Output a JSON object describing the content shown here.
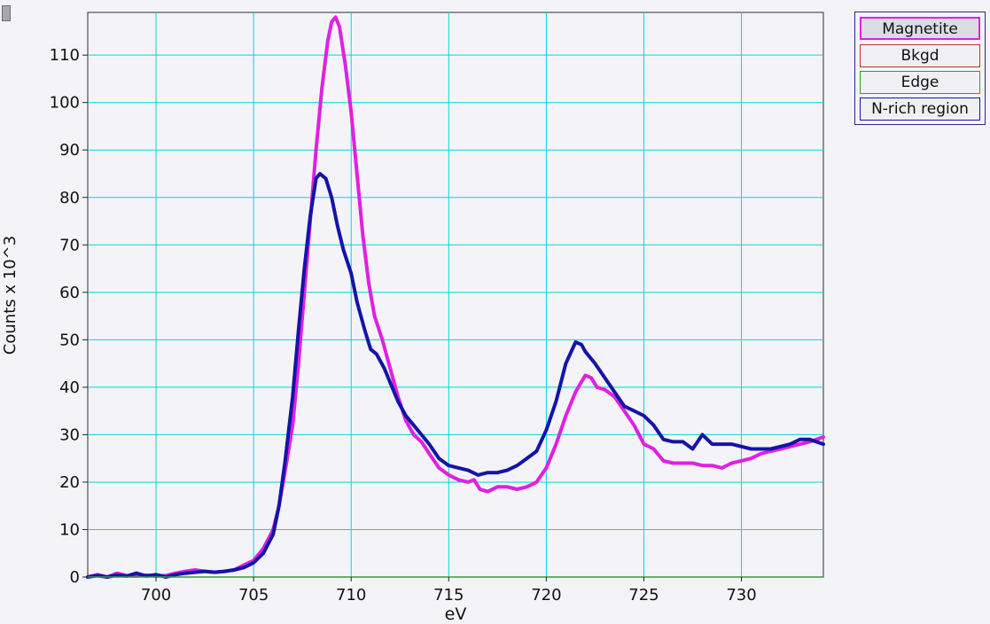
{
  "legend": {
    "items": [
      {
        "label": "Magnetite",
        "color": "#e020e0",
        "selected": true
      },
      {
        "label": "Bkgd",
        "color": "#c03030",
        "selected": false
      },
      {
        "label": "Edge",
        "color": "#30a030",
        "selected": false
      },
      {
        "label": "N-rich region",
        "color": "#1414a8",
        "selected": false
      }
    ]
  },
  "chart_data": {
    "type": "line",
    "xlabel": "eV",
    "ylabel": "Counts x 10^3",
    "xlim": [
      696.5,
      734.2
    ],
    "ylim": [
      0,
      119
    ],
    "xticks": [
      700,
      705,
      710,
      715,
      720,
      725,
      730
    ],
    "yticks": [
      0,
      10,
      20,
      30,
      40,
      50,
      60,
      70,
      80,
      90,
      100,
      110
    ],
    "grid": true,
    "grid_color": "#00d8d8",
    "legend_position": "top-right outside",
    "series": [
      {
        "name": "Magnetite",
        "color": "#e020e0",
        "points": [
          [
            696.5,
            0
          ],
          [
            697,
            0.5
          ],
          [
            697.5,
            0
          ],
          [
            698,
            0.8
          ],
          [
            698.5,
            0.3
          ],
          [
            699,
            0.2
          ],
          [
            699.5,
            0.4
          ],
          [
            700,
            0.2
          ],
          [
            700.5,
            0.3
          ],
          [
            701,
            0.8
          ],
          [
            701.5,
            1.2
          ],
          [
            702,
            1.5
          ],
          [
            702.5,
            1.2
          ],
          [
            703,
            1
          ],
          [
            703.5,
            1.2
          ],
          [
            704,
            1.5
          ],
          [
            704.5,
            2.5
          ],
          [
            705,
            3.5
          ],
          [
            705.5,
            6
          ],
          [
            706,
            10
          ],
          [
            706.3,
            15
          ],
          [
            706.6,
            22
          ],
          [
            707,
            32
          ],
          [
            707.3,
            45
          ],
          [
            707.6,
            60
          ],
          [
            707.9,
            75
          ],
          [
            708.2,
            90
          ],
          [
            708.5,
            103
          ],
          [
            708.8,
            113
          ],
          [
            709,
            117
          ],
          [
            709.2,
            118
          ],
          [
            709.4,
            116
          ],
          [
            709.7,
            108
          ],
          [
            710,
            98
          ],
          [
            710.3,
            85
          ],
          [
            710.6,
            72
          ],
          [
            710.9,
            62
          ],
          [
            711.2,
            55
          ],
          [
            711.6,
            50
          ],
          [
            712,
            44
          ],
          [
            712.4,
            38
          ],
          [
            712.8,
            33
          ],
          [
            713.2,
            30
          ],
          [
            713.6,
            28.5
          ],
          [
            714,
            26
          ],
          [
            714.5,
            23
          ],
          [
            715,
            21.5
          ],
          [
            715.5,
            20.5
          ],
          [
            716,
            20
          ],
          [
            716.3,
            20.5
          ],
          [
            716.6,
            18.5
          ],
          [
            717,
            18
          ],
          [
            717.5,
            19
          ],
          [
            718,
            19
          ],
          [
            718.5,
            18.5
          ],
          [
            719,
            19
          ],
          [
            719.5,
            20
          ],
          [
            720,
            23
          ],
          [
            720.5,
            28
          ],
          [
            721,
            34
          ],
          [
            721.5,
            39
          ],
          [
            722,
            42.5
          ],
          [
            722.3,
            42
          ],
          [
            722.6,
            40
          ],
          [
            723,
            39.5
          ],
          [
            723.5,
            38
          ],
          [
            724,
            35
          ],
          [
            724.5,
            32
          ],
          [
            725,
            28
          ],
          [
            725.5,
            27
          ],
          [
            726,
            24.5
          ],
          [
            726.5,
            24
          ],
          [
            727,
            24
          ],
          [
            727.5,
            24
          ],
          [
            728,
            23.5
          ],
          [
            728.5,
            23.5
          ],
          [
            729,
            23
          ],
          [
            729.5,
            24
          ],
          [
            730,
            24.5
          ],
          [
            730.5,
            25
          ],
          [
            731,
            26
          ],
          [
            731.5,
            26.5
          ],
          [
            732,
            27
          ],
          [
            732.5,
            27.5
          ],
          [
            733,
            28
          ],
          [
            733.5,
            28.5
          ],
          [
            734.2,
            29.5
          ]
        ]
      },
      {
        "name": "N-rich region",
        "color": "#1414a8",
        "points": [
          [
            696.5,
            0
          ],
          [
            697,
            0.3
          ],
          [
            697.5,
            0
          ],
          [
            698,
            0.4
          ],
          [
            698.5,
            0.2
          ],
          [
            699,
            0.8
          ],
          [
            699.5,
            0.2
          ],
          [
            700,
            0.5
          ],
          [
            700.5,
            0
          ],
          [
            701,
            0.5
          ],
          [
            701.5,
            0.8
          ],
          [
            702,
            1
          ],
          [
            702.5,
            1.2
          ],
          [
            703,
            1
          ],
          [
            703.5,
            1.2
          ],
          [
            704,
            1.5
          ],
          [
            704.5,
            2
          ],
          [
            705,
            3
          ],
          [
            705.5,
            5
          ],
          [
            706,
            9
          ],
          [
            706.3,
            15
          ],
          [
            706.6,
            24
          ],
          [
            707,
            38
          ],
          [
            707.3,
            52
          ],
          [
            707.6,
            65
          ],
          [
            707.9,
            76
          ],
          [
            708.2,
            84
          ],
          [
            708.4,
            85
          ],
          [
            708.7,
            84
          ],
          [
            709,
            80
          ],
          [
            709.3,
            74
          ],
          [
            709.6,
            69
          ],
          [
            710,
            64
          ],
          [
            710.3,
            58
          ],
          [
            710.7,
            52
          ],
          [
            711,
            48
          ],
          [
            711.3,
            47
          ],
          [
            711.7,
            44
          ],
          [
            712,
            41
          ],
          [
            712.4,
            37
          ],
          [
            712.8,
            34
          ],
          [
            713.2,
            32
          ],
          [
            713.6,
            30
          ],
          [
            714,
            28
          ],
          [
            714.5,
            25
          ],
          [
            715,
            23.5
          ],
          [
            715.5,
            23
          ],
          [
            716,
            22.5
          ],
          [
            716.5,
            21.5
          ],
          [
            717,
            22
          ],
          [
            717.5,
            22
          ],
          [
            718,
            22.5
          ],
          [
            718.5,
            23.5
          ],
          [
            719,
            25
          ],
          [
            719.5,
            26.5
          ],
          [
            720,
            31
          ],
          [
            720.5,
            37
          ],
          [
            721,
            45
          ],
          [
            721.5,
            49.5
          ],
          [
            721.8,
            49
          ],
          [
            722,
            47.5
          ],
          [
            722.5,
            45
          ],
          [
            723,
            42
          ],
          [
            723.5,
            39
          ],
          [
            724,
            36
          ],
          [
            724.5,
            35
          ],
          [
            725,
            34
          ],
          [
            725.5,
            32
          ],
          [
            726,
            29
          ],
          [
            726.5,
            28.5
          ],
          [
            727,
            28.5
          ],
          [
            727.5,
            27
          ],
          [
            728,
            30
          ],
          [
            728.5,
            28
          ],
          [
            729,
            28
          ],
          [
            729.5,
            28
          ],
          [
            730,
            27.5
          ],
          [
            730.5,
            27
          ],
          [
            731,
            27
          ],
          [
            731.5,
            27
          ],
          [
            732,
            27.5
          ],
          [
            732.5,
            28
          ],
          [
            733,
            29
          ],
          [
            733.5,
            29
          ],
          [
            734.2,
            28
          ]
        ]
      },
      {
        "name": "Edge",
        "color": "#30a030",
        "points": [
          [
            696.5,
            0
          ],
          [
            734.2,
            0
          ]
        ]
      }
    ]
  }
}
